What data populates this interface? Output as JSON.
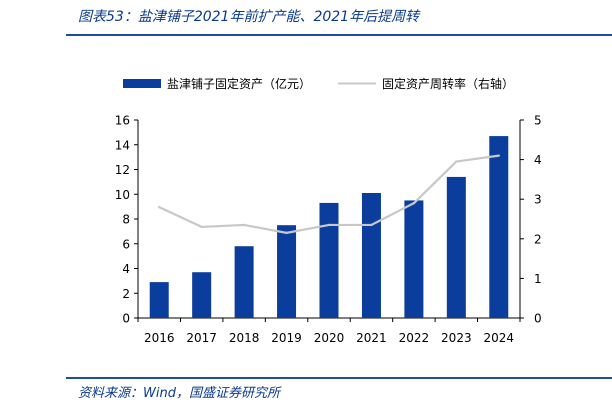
{
  "header": {
    "title": "图表53：盐津铺子2021年前扩产能、2021年后提周转"
  },
  "footer": {
    "source": "资料来源：Wind，国盛证券研究所"
  },
  "colors": {
    "bar": "#0a3d9c",
    "line": "#c8c8c8",
    "accent": "#1f4e9c"
  },
  "chart_data": {
    "type": "bar",
    "categories": [
      "2016",
      "2017",
      "2018",
      "2019",
      "2020",
      "2021",
      "2022",
      "2023",
      "2024"
    ],
    "series": [
      {
        "name": "盐津铺子固定资产（亿元）",
        "type": "bar",
        "axis": "left",
        "values": [
          2.9,
          3.7,
          5.8,
          7.5,
          9.3,
          10.1,
          9.5,
          11.4,
          14.7
        ]
      },
      {
        "name": "固定资产周转率（右轴）",
        "type": "line",
        "axis": "right",
        "values": [
          2.8,
          2.3,
          2.35,
          2.15,
          2.35,
          2.35,
          2.9,
          3.95,
          4.1
        ]
      }
    ],
    "ylim": [
      0,
      16
    ],
    "y_ticks": [
      "0",
      "2",
      "4",
      "6",
      "8",
      "10",
      "12",
      "14",
      "16"
    ],
    "y2lim": [
      0,
      5
    ],
    "y2_ticks": [
      "0",
      "1",
      "2",
      "3",
      "4",
      "5"
    ],
    "legend_position": "top"
  }
}
